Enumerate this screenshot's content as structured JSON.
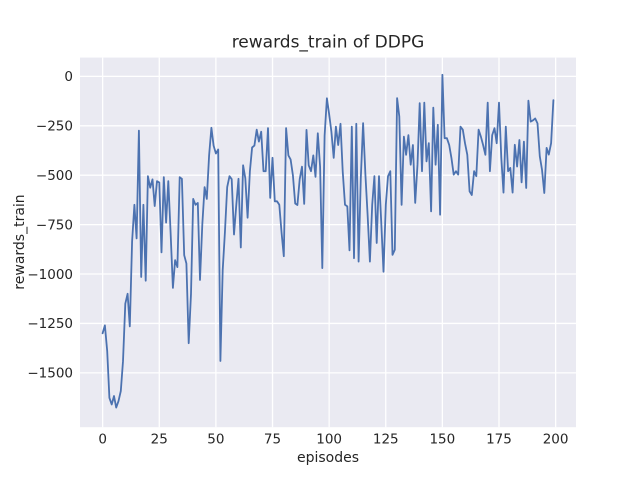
{
  "figure": {
    "title": "rewards_train of DDPG",
    "xlabel": "episodes",
    "ylabel": "rewards_train"
  },
  "colors": {
    "figure_background": "#ffffff",
    "axes_background": "#eaeaf2",
    "gridline": "#ffffff",
    "line": "#4c72b0",
    "text": "#262626"
  },
  "chart_data": {
    "type": "line",
    "title": "rewards_train of DDPG",
    "xlabel": "episodes",
    "ylabel": "rewards_train",
    "grid": true,
    "legend": "none",
    "x_ticks": [
      0,
      25,
      50,
      75,
      100,
      125,
      150,
      175,
      200
    ],
    "y_ticks": [
      0,
      -250,
      -500,
      -750,
      -1000,
      -1250,
      -1500
    ],
    "xlim": [
      -10,
      209
    ],
    "ylim": [
      -1775,
      95
    ],
    "x_start": 0,
    "x_step": 1,
    "series": [
      {
        "name": "rewards_train",
        "color": "#4c72b0",
        "values": [
          -1300,
          -1260,
          -1390,
          -1626,
          -1660,
          -1617,
          -1676,
          -1643,
          -1592,
          -1441,
          -1150,
          -1100,
          -1265,
          -835,
          -650,
          -820,
          -275,
          -1015,
          -650,
          -1034,
          -505,
          -563,
          -521,
          -656,
          -530,
          -537,
          -890,
          -510,
          -740,
          -530,
          -790,
          -1070,
          -930,
          -965,
          -510,
          -518,
          -905,
          -947,
          -1350,
          -1100,
          -620,
          -650,
          -640,
          -1030,
          -750,
          -560,
          -620,
          -400,
          -260,
          -350,
          -390,
          -370,
          -1440,
          -980,
          -790,
          -560,
          -505,
          -520,
          -800,
          -650,
          -518,
          -866,
          -450,
          -515,
          -715,
          -480,
          -360,
          -350,
          -270,
          -330,
          -280,
          -480,
          -480,
          -262,
          -615,
          -412,
          -632,
          -632,
          -650,
          -793,
          -910,
          -262,
          -400,
          -420,
          -500,
          -643,
          -651,
          -520,
          -457,
          -645,
          -271,
          -450,
          -480,
          -400,
          -508,
          -288,
          -457,
          -970,
          -300,
          -111,
          -190,
          -280,
          -412,
          -254,
          -347,
          -240,
          -480,
          -650,
          -658,
          -880,
          -254,
          -920,
          -240,
          -937,
          -514,
          -237,
          -497,
          -700,
          -937,
          -650,
          -505,
          -843,
          -505,
          -733,
          -988,
          -650,
          -505,
          -480,
          -903,
          -877,
          -110,
          -203,
          -650,
          -305,
          -397,
          -297,
          -447,
          -347,
          -640,
          -447,
          -135,
          -480,
          -133,
          -430,
          -338,
          -683,
          -158,
          -447,
          -245,
          -700,
          8,
          -313,
          -313,
          -347,
          -412,
          -497,
          -480,
          -497,
          -254,
          -270,
          -338,
          -397,
          -582,
          -600,
          -480,
          -505,
          -270,
          -305,
          -347,
          -397,
          -133,
          -480,
          -297,
          -262,
          -338,
          -133,
          -412,
          -588,
          -254,
          -480,
          -463,
          -588,
          -346,
          -456,
          -322,
          -536,
          -330,
          -565,
          -123,
          -229,
          -222,
          -213,
          -238,
          -405,
          -472,
          -590,
          -362,
          -396,
          -338,
          -120
        ]
      }
    ]
  }
}
